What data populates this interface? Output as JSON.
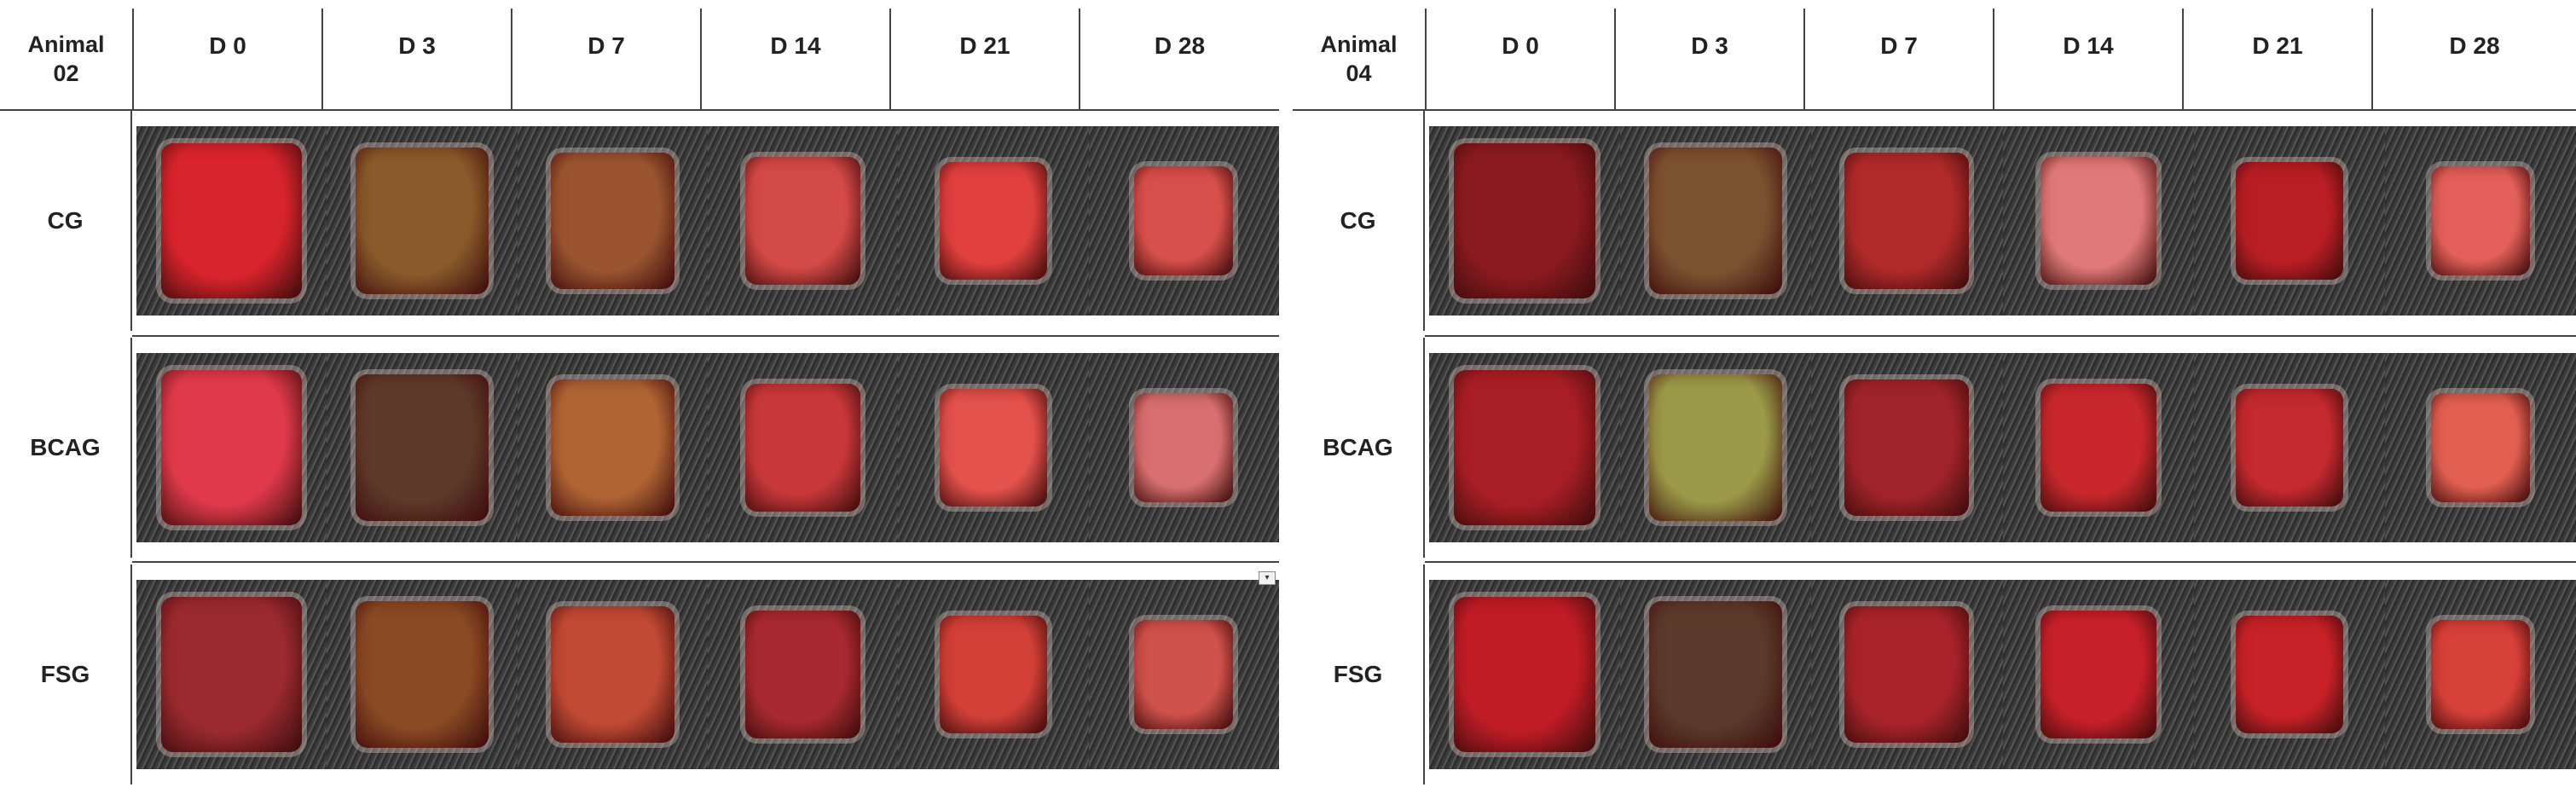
{
  "panels": [
    {
      "animal_label_line1": "Animal",
      "animal_label_line2": "02",
      "days": [
        "D 0",
        "D 3",
        "D 7",
        "D 14",
        "D 21",
        "D 28"
      ],
      "groups": [
        {
          "label": "CG",
          "wound_colors": [
            "#d8242c",
            "#8a5a2a",
            "#9a5530",
            "#d44a48",
            "#e0403e",
            "#d8504c"
          ]
        },
        {
          "label": "BCAG",
          "wound_colors": [
            "#e03a4a",
            "#5e3a2a",
            "#b06434",
            "#c8383a",
            "#e4524c",
            "#d87070"
          ]
        },
        {
          "label": "FSG",
          "wound_colors": [
            "#9a2a30",
            "#8a4a24",
            "#c04a34",
            "#a82a30",
            "#d24038",
            "#d0524c"
          ]
        }
      ]
    },
    {
      "animal_label_line1": "Animal",
      "animal_label_line2": "04",
      "days": [
        "D 0",
        "D 3",
        "D 7",
        "D 14",
        "D 21",
        "D 28"
      ],
      "groups": [
        {
          "label": "CG",
          "wound_colors": [
            "#8a1a20",
            "#7a5230",
            "#b02a2a",
            "#e07a78",
            "#b81e24",
            "#e4605a"
          ]
        },
        {
          "label": "BCAG",
          "wound_colors": [
            "#a81e24",
            "#9a9a48",
            "#a0242a",
            "#c8282c",
            "#c42a30",
            "#e26052"
          ]
        },
        {
          "label": "FSG",
          "wound_colors": [
            "#c01c26",
            "#5a3a2a",
            "#a8242a",
            "#c8202a",
            "#c82228",
            "#d8403a"
          ]
        }
      ]
    }
  ]
}
